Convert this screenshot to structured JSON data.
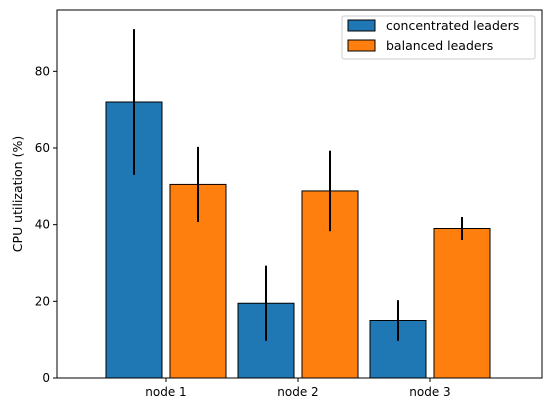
{
  "chart_data": {
    "type": "bar",
    "categories": [
      "node 1",
      "node 2",
      "node 3"
    ],
    "series": [
      {
        "name": "concentrated leaders",
        "color": "#1f77b4",
        "values": [
          72,
          19.5,
          15
        ],
        "errors": [
          19,
          9.8,
          5.3
        ]
      },
      {
        "name": "balanced leaders",
        "color": "#ff7f0e",
        "values": [
          50.5,
          48.8,
          39
        ],
        "errors": [
          9.8,
          10.5,
          3
        ]
      }
    ],
    "ylabel": "CPU utilization (%)",
    "xlabel": "",
    "title": "",
    "ylim": [
      0,
      96
    ],
    "yticks": [
      0,
      20,
      40,
      60,
      80
    ],
    "legend": "top-right",
    "grid": false
  }
}
